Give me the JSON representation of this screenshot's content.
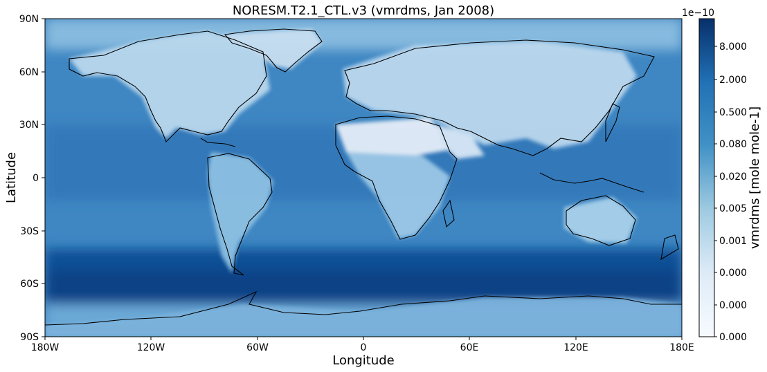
{
  "title": "NORESM.T2.1_CTL.v3 (vmrdms, Jan 2008)",
  "axes": {
    "xlabel": "Longitude",
    "ylabel": "Latitude",
    "xticks": [
      "180W",
      "120W",
      "60W",
      "0",
      "60E",
      "120E",
      "180E"
    ],
    "yticks": [
      "90N",
      "60N",
      "30N",
      "0",
      "30S",
      "60S",
      "90S"
    ]
  },
  "colorbar": {
    "label": "vmrdms [mole mole-1]",
    "exponent": "1e−10",
    "ticks": [
      "8.000",
      "2.000",
      "0.500",
      "0.080",
      "0.020",
      "0.005",
      "0.001",
      "0.000",
      "0.000",
      "0.000"
    ],
    "colormap": "Blues",
    "scale": "log"
  },
  "colors": {
    "land_low": "#e6eef8",
    "ocean_mid": "#4a8fc7",
    "southern_ocean_high": "#0a4f96",
    "coastline": "#000000"
  }
}
